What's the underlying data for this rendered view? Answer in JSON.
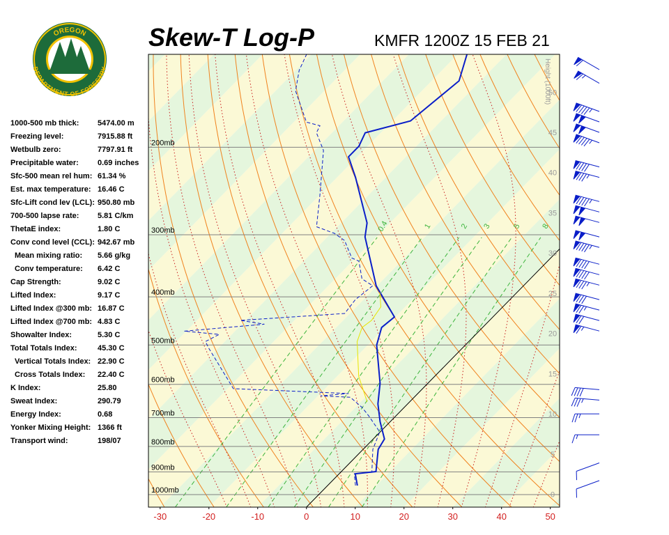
{
  "logo": {
    "top_text": "OREGON",
    "bottom_text": "DEPARTMENT OF FORESTRY"
  },
  "indices": [
    {
      "label": "1000-500 mb thick:",
      "value": "5474.00 m"
    },
    {
      "label": "Freezing level:",
      "value": "7915.88 ft"
    },
    {
      "label": "Wetbulb zero:",
      "value": "7797.91 ft"
    },
    {
      "label": "Precipitable water:",
      "value": "0.69 inches"
    },
    {
      "label": "Sfc-500 mean rel hum:",
      "value": "61.34 %"
    },
    {
      "label": "Est. max temperature:",
      "value": "16.46 C"
    },
    {
      "label": "Sfc-Lift cond lev (LCL):",
      "value": "950.80 mb"
    },
    {
      "label": "700-500 lapse rate:",
      "value": "5.81 C/km"
    },
    {
      "label": "ThetaE index:",
      "value": "1.80 C"
    },
    {
      "label": "Conv cond level (CCL):",
      "value": "942.67 mb"
    },
    {
      "label": "Mean mixing ratio:",
      "value": "5.66 g/kg"
    },
    {
      "label": "Conv temperature:",
      "value": "6.42 C"
    },
    {
      "label": "Cap Strength:",
      "value": "9.02 C"
    },
    {
      "label": "Lifted Index:",
      "value": "9.17 C"
    },
    {
      "label": "Lifted Index @300 mb:",
      "value": "16.87 C"
    },
    {
      "label": "Lifted Index @700 mb:",
      "value": "4.83 C"
    },
    {
      "label": "Showalter Index:",
      "value": "5.30 C"
    },
    {
      "label": "Total Totals Index:",
      "value": "45.30 C"
    },
    {
      "label": "Vertical Totals Index:",
      "value": "22.90 C"
    },
    {
      "label": "Cross Totals Index:",
      "value": "22.40 C"
    },
    {
      "label": "K Index:",
      "value": "25.80"
    },
    {
      "label": "Sweat Index:",
      "value": "290.79"
    },
    {
      "label": "Energy Index:",
      "value": "0.68"
    },
    {
      "label": "Yonker Mixing Height:",
      "value": "1366 ft"
    },
    {
      "label": "Transport wind:",
      "value": "198/07"
    }
  ],
  "chart_data": {
    "type": "skew-t",
    "title": "Skew-T Log-P",
    "subtitle": "KMFR 1200Z 15 FEB 21",
    "xlim": [
      -32.4,
      51.9
    ],
    "xticks": [
      -30,
      -20,
      -10,
      0,
      10,
      20,
      30,
      40,
      50
    ],
    "ylim": [
      1060,
      130
    ],
    "log_y": true,
    "yticks": [
      {
        "value": 200,
        "label": "200mb"
      },
      {
        "value": 300,
        "label": "300mb"
      },
      {
        "value": 400,
        "label": "400mb"
      },
      {
        "value": 500,
        "label": "500mb"
      },
      {
        "value": 600,
        "label": "600mb"
      },
      {
        "value": 700,
        "label": "700mb"
      },
      {
        "value": 800,
        "label": "800mb"
      },
      {
        "value": 900,
        "label": "900mb"
      },
      {
        "value": 1000,
        "label": "1000mb"
      }
    ],
    "y2_label": "Height (1000ft)",
    "y2lim": [
      -1.6,
      54.7
    ],
    "y2ticks": [
      0,
      5,
      10,
      15,
      20,
      25,
      30,
      35,
      40,
      45,
      50
    ],
    "mixing_ratios": [
      0.4,
      1,
      2,
      3,
      5,
      8
    ],
    "series": [
      {
        "color": "#0a1ec8",
        "dash": false,
        "width": 2,
        "pressure": [
          959,
          908,
          899,
          811,
          773,
          713,
          657,
          597,
          500,
          461,
          439,
          380,
          303,
          284,
          230,
          209,
          199,
          187,
          177,
          147,
          130
        ],
        "temperature": [
          6.1,
          3.3,
          7.1,
          3.1,
          2.3,
          -2.1,
          -6.1,
          -9.8,
          -18.2,
          -20.7,
          -20.2,
          -30.2,
          -42.3,
          -44.7,
          -56.2,
          -61.8,
          -61.8,
          -63.2,
          -56.3,
          -54.4,
          -58.1
        ]
      },
      {
        "color": "#0a1ec8",
        "dash": true,
        "width": 1,
        "pressure": [
          959,
          908,
          902,
          811,
          748,
          697,
          668,
          637,
          633,
          626,
          612,
          508,
          492,
          476,
          469,
          454,
          446,
          432,
          405,
          380,
          368,
          339,
          334,
          308,
          298,
          289,
          250,
          203,
          187,
          181,
          178,
          154,
          140,
          130
        ],
        "temperature": [
          5.7,
          3.1,
          6.4,
          2.0,
          -0.1,
          -5.3,
          -8.6,
          -13.1,
          -19.5,
          -14.2,
          -38.8,
          -51.9,
          -54.0,
          -52.6,
          -60.4,
          -45.4,
          -51.1,
          -31.1,
          -31.7,
          -30.9,
          -34.5,
          -38.7,
          -40.8,
          -45.8,
          -49.3,
          -54.3,
          -59.9,
          -68.2,
          -73.2,
          -73.9,
          -77.4,
          -85.9,
          -89.3,
          -91.0
        ]
      },
      {
        "color": "#e6e600",
        "dash": false,
        "width": 1,
        "pressure": [
          651,
          578,
          492,
          461,
          446,
          419,
          392
        ],
        "temperature": [
          -8.7,
          -15.6,
          -22.9,
          -24.7,
          -24.2,
          -25.0,
          -28.1
        ]
      }
    ],
    "wind": {
      "height": [
        52.8,
        51.1,
        47.6,
        46.3,
        45.0,
        43.7,
        40.7,
        39.4,
        36.4,
        35.1,
        33.8,
        32.0,
        30.7,
        28.6,
        27.3,
        26.0,
        24.2,
        22.9,
        21.6,
        20.3,
        13.0,
        11.7,
        10.0,
        7.4,
        3.9,
        1.7
      ],
      "speed": [
        60,
        65,
        95,
        100,
        100,
        95,
        90,
        85,
        95,
        100,
        100,
        100,
        95,
        90,
        90,
        85,
        80,
        75,
        70,
        65,
        40,
        35,
        25,
        15,
        10,
        10
      ],
      "direction": [
        300,
        300,
        290,
        290,
        290,
        290,
        285,
        285,
        285,
        285,
        285,
        285,
        285,
        285,
        285,
        285,
        285,
        285,
        285,
        285,
        275,
        275,
        270,
        270,
        250,
        250
      ],
      "color": "#0a1ec8"
    }
  }
}
